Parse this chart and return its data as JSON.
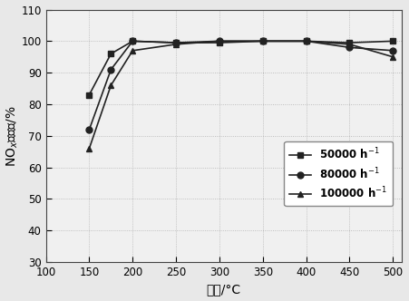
{
  "x": [
    150,
    175,
    200,
    250,
    300,
    350,
    400,
    450,
    500
  ],
  "series": [
    {
      "label": "50000 h$^{-1}$",
      "values": [
        83,
        96,
        100,
        99.5,
        99.5,
        100,
        100,
        99.5,
        100
      ],
      "marker": "s",
      "color": "#222222"
    },
    {
      "label": "80000 h$^{-1}$",
      "values": [
        72,
        91,
        100,
        99.5,
        100,
        100,
        100,
        98,
        97
      ],
      "marker": "o",
      "color": "#222222"
    },
    {
      "label": "100000 h$^{-1}$",
      "values": [
        66,
        86,
        97,
        99,
        100,
        100,
        100,
        99,
        95
      ],
      "marker": "^",
      "color": "#222222"
    }
  ],
  "xlim": [
    100,
    510
  ],
  "ylim": [
    30,
    110
  ],
  "xticks": [
    100,
    150,
    200,
    250,
    300,
    350,
    400,
    450,
    500
  ],
  "yticks": [
    30,
    40,
    50,
    60,
    70,
    80,
    90,
    100,
    110
  ],
  "xlabel": "温度/°C",
  "ylabel": "NO$_x$转化率/%",
  "background_color": "#f5f5f5",
  "grid_color": "#cccccc",
  "linewidth": 1.2,
  "markersize": 5
}
